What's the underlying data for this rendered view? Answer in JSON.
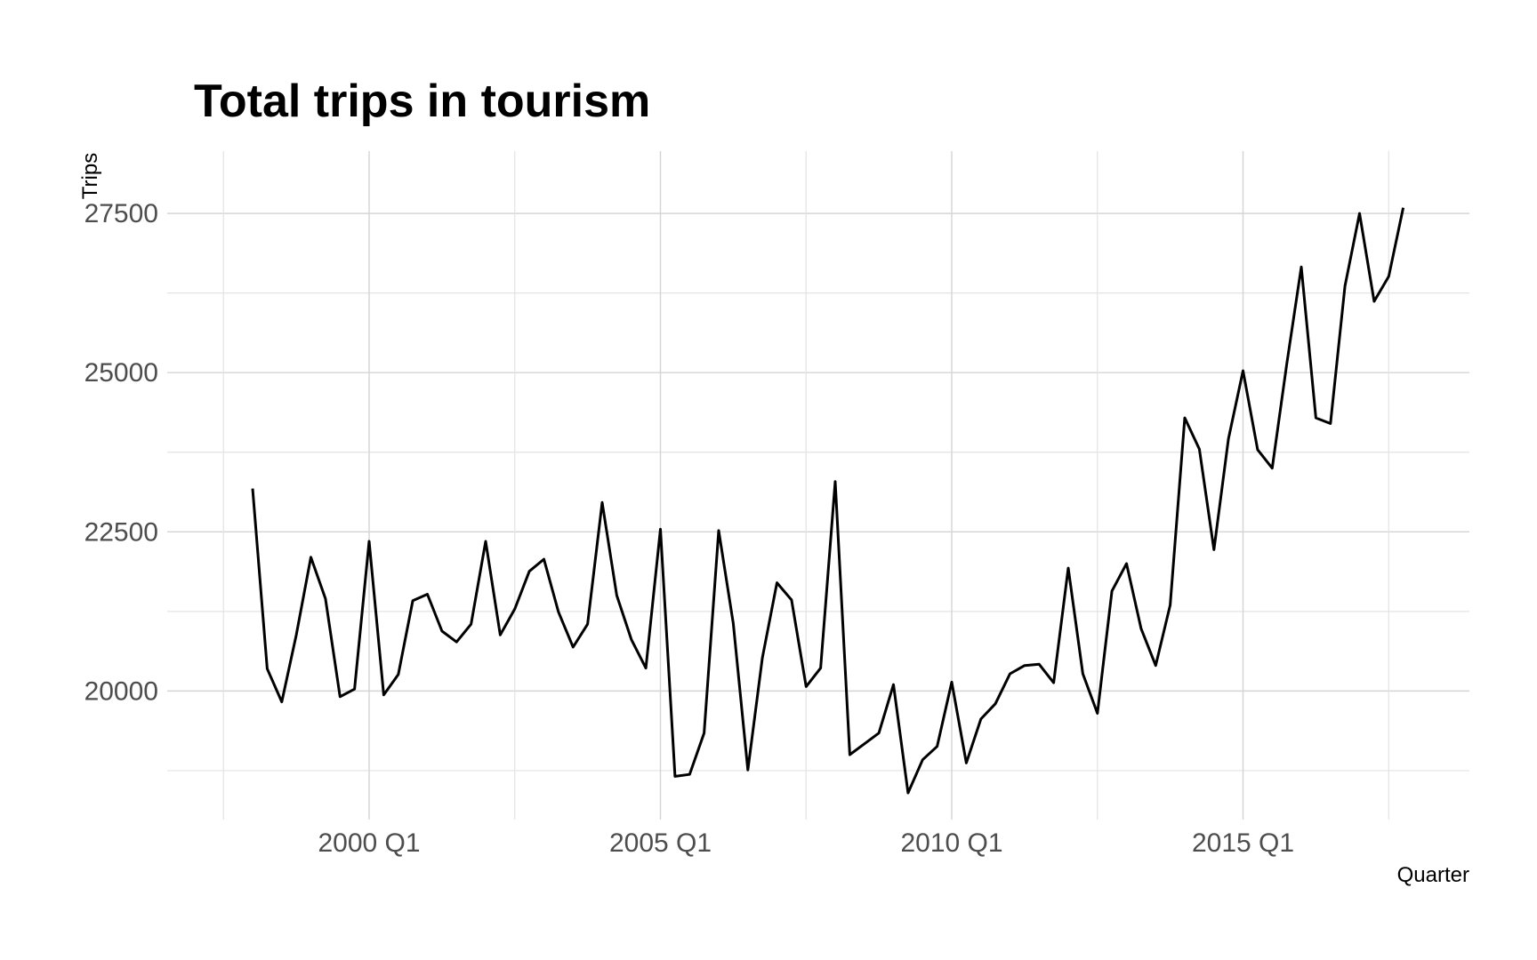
{
  "chart_data": {
    "type": "line",
    "title": "Total trips in tourism",
    "xlabel": "Quarter",
    "ylabel": "Trips",
    "x_start": "1998 Q1",
    "x_ticks": [
      "2000 Q1",
      "2005 Q1",
      "2010 Q1",
      "2015 Q1"
    ],
    "y_ticks": [
      20000,
      22500,
      25000,
      27500
    ],
    "ylim": [
      18400,
      28060
    ],
    "grid": true,
    "legend": "none",
    "series": [
      {
        "color": "#000000",
        "x": [
          "1998 Q1",
          "1998 Q2",
          "1998 Q3",
          "1998 Q4",
          "1999 Q1",
          "1999 Q2",
          "1999 Q3",
          "1999 Q4",
          "2000 Q1",
          "2000 Q2",
          "2000 Q3",
          "2000 Q4",
          "2001 Q1",
          "2001 Q2",
          "2001 Q3",
          "2001 Q4",
          "2002 Q1",
          "2002 Q2",
          "2002 Q3",
          "2002 Q4",
          "2003 Q1",
          "2003 Q2",
          "2003 Q3",
          "2003 Q4",
          "2004 Q1",
          "2004 Q2",
          "2004 Q3",
          "2004 Q4",
          "2005 Q1",
          "2005 Q2",
          "2005 Q3",
          "2005 Q4",
          "2006 Q1",
          "2006 Q2",
          "2006 Q3",
          "2006 Q4",
          "2007 Q1",
          "2007 Q2",
          "2007 Q3",
          "2007 Q4",
          "2008 Q1",
          "2008 Q2",
          "2008 Q3",
          "2008 Q4",
          "2009 Q1",
          "2009 Q2",
          "2009 Q3",
          "2009 Q4",
          "2010 Q1",
          "2010 Q2",
          "2010 Q3",
          "2010 Q4",
          "2011 Q1",
          "2011 Q2",
          "2011 Q3",
          "2011 Q4",
          "2012 Q1",
          "2012 Q2",
          "2012 Q3",
          "2012 Q4",
          "2013 Q1",
          "2013 Q2",
          "2013 Q3",
          "2013 Q4",
          "2014 Q1",
          "2014 Q2",
          "2014 Q3",
          "2014 Q4",
          "2015 Q1",
          "2015 Q2",
          "2015 Q3",
          "2015 Q4",
          "2016 Q1",
          "2016 Q2",
          "2016 Q3",
          "2016 Q4",
          "2017 Q1",
          "2017 Q2",
          "2017 Q3",
          "2017 Q4"
        ],
        "values": [
          23180,
          20350,
          19830,
          20880,
          22100,
          21450,
          19910,
          20030,
          22350,
          19940,
          20260,
          21420,
          21520,
          20940,
          20770,
          21050,
          22350,
          20880,
          21290,
          21880,
          22070,
          21240,
          20690,
          21050,
          22960,
          21500,
          20810,
          20360,
          22540,
          18660,
          18690,
          19340,
          22520,
          21060,
          18760,
          20520,
          21700,
          21430,
          20070,
          20360,
          23290,
          19000,
          19170,
          19340,
          20100,
          18400,
          18920,
          19130,
          20140,
          18870,
          19560,
          19800,
          20270,
          20400,
          20420,
          20130,
          21930,
          20270,
          19650,
          21570,
          22000,
          20980,
          20400,
          21350,
          24290,
          23800,
          22220,
          23960,
          25030,
          23790,
          23500,
          25130,
          26660,
          24290,
          24200,
          26360,
          27500,
          26120,
          26510,
          27590
        ]
      }
    ]
  }
}
